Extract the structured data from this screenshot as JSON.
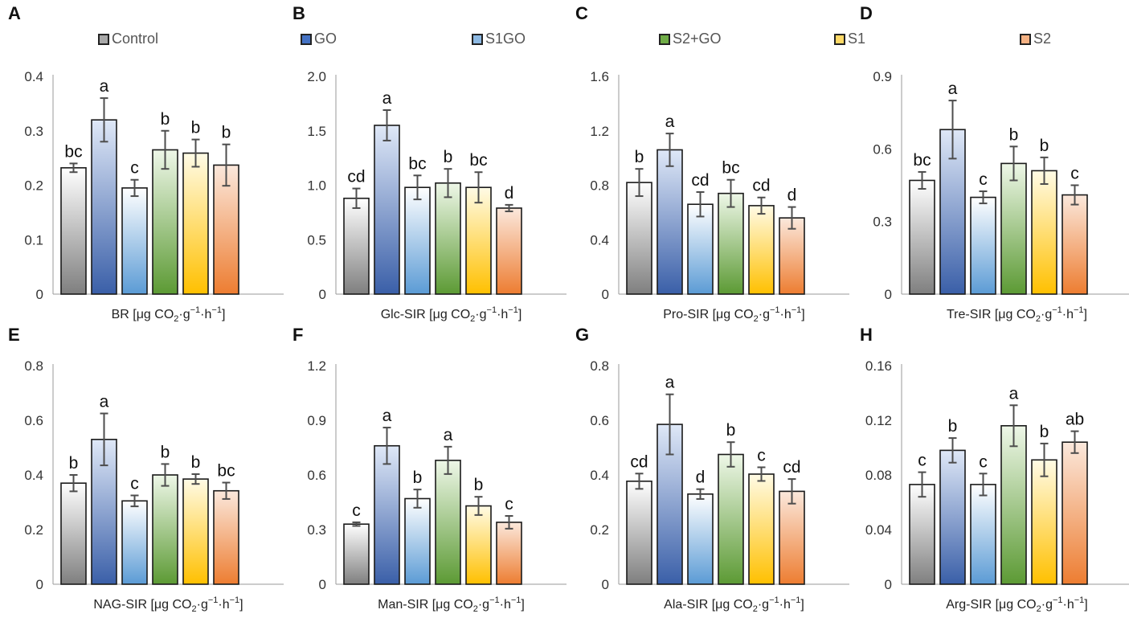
{
  "legend": [
    {
      "label": "Control",
      "color": "#a8a8a8",
      "light": "#ffffff",
      "dark": "#7f7f7f"
    },
    {
      "label": "GO",
      "color": "#4472c4",
      "light": "#dfe8f7",
      "dark": "#3a5fa8"
    },
    {
      "label": "S1GO",
      "color": "#5b9bd5",
      "light": "#ffffff",
      "dark": "#5b9bd5"
    },
    {
      "label": "S2+GO",
      "color": "#70ad47",
      "light": "#eef7e8",
      "dark": "#5c9a34"
    },
    {
      "label": "S1",
      "color": "#ffc000",
      "light": "#fffbe6",
      "dark": "#ffc000"
    },
    {
      "label": "S2",
      "color": "#ed7d31",
      "light": "#fbe8dc",
      "dark": "#ed7d31"
    }
  ],
  "chart_data": [
    {
      "panel": "A",
      "type": "bar",
      "xlabel_main": "BR [μg CO",
      "xlabel_sub": "2",
      "xlabel_rest": "·g",
      "xlabel_sup1": "−1",
      "xlabel_mid": "·h",
      "xlabel_sup2": "−1",
      "xlabel_end": "]",
      "ylim": [
        0,
        0.4
      ],
      "ticks": [
        0,
        0.1,
        0.2,
        0.3,
        0.4
      ],
      "tick_labels": [
        "0",
        "0.1",
        "0.2",
        "0.3",
        "0.4"
      ],
      "values": [
        0.232,
        0.32,
        0.195,
        0.265,
        0.259,
        0.237
      ],
      "errors": [
        0.008,
        0.04,
        0.015,
        0.035,
        0.025,
        0.038
      ],
      "letters": [
        "bc",
        "a",
        "c",
        "b",
        "b",
        "b"
      ]
    },
    {
      "panel": "B",
      "type": "bar",
      "xlabel_main": "Glc-SIR [μg CO",
      "xlabel_sub": "2",
      "xlabel_rest": "·g",
      "xlabel_sup1": "−1",
      "xlabel_mid": "·h",
      "xlabel_sup2": "−1",
      "xlabel_end": "]",
      "ylim": [
        0,
        2.0
      ],
      "ticks": [
        0,
        0.5,
        1.0,
        1.5,
        2.0
      ],
      "tick_labels": [
        "0",
        "0.5",
        "1.0",
        "1.5",
        "2.0"
      ],
      "values": [
        0.88,
        1.55,
        0.98,
        1.02,
        0.98,
        0.79
      ],
      "errors": [
        0.09,
        0.14,
        0.11,
        0.13,
        0.14,
        0.03
      ],
      "letters": [
        "cd",
        "a",
        "bc",
        "b",
        "bc",
        "d"
      ]
    },
    {
      "panel": "C",
      "type": "bar",
      "xlabel_main": "Pro-SIR [μg CO",
      "xlabel_sub": "2",
      "xlabel_rest": "·g",
      "xlabel_sup1": "−1",
      "xlabel_mid": "·h",
      "xlabel_sup2": "−1",
      "xlabel_end": "]",
      "ylim": [
        0,
        1.6
      ],
      "ticks": [
        0,
        0.4,
        0.8,
        1.2,
        1.6
      ],
      "tick_labels": [
        "0",
        "0.4",
        "0.8",
        "1.2",
        "1.6"
      ],
      "values": [
        0.82,
        1.06,
        0.66,
        0.74,
        0.65,
        0.56
      ],
      "errors": [
        0.1,
        0.12,
        0.09,
        0.1,
        0.06,
        0.08
      ],
      "letters": [
        "b",
        "a",
        "cd",
        "bc",
        "cd",
        "d"
      ]
    },
    {
      "panel": "D",
      "type": "bar",
      "xlabel_main": "Tre-SIR [μg CO",
      "xlabel_sub": "2",
      "xlabel_rest": "·g",
      "xlabel_sup1": "−1",
      "xlabel_mid": "·h",
      "xlabel_sup2": "−1",
      "xlabel_end": "]",
      "ylim": [
        0,
        0.9
      ],
      "ticks": [
        0,
        0.3,
        0.6,
        0.9
      ],
      "tick_labels": [
        "0",
        "0.3",
        "0.6",
        "0.9"
      ],
      "values": [
        0.47,
        0.68,
        0.4,
        0.54,
        0.51,
        0.41
      ],
      "errors": [
        0.035,
        0.12,
        0.025,
        0.07,
        0.055,
        0.04
      ],
      "letters": [
        "bc",
        "a",
        "c",
        "b",
        "b",
        "c"
      ]
    },
    {
      "panel": "E",
      "type": "bar",
      "xlabel_main": "NAG-SIR [μg CO",
      "xlabel_sub": "2",
      "xlabel_rest": "·g",
      "xlabel_sup1": "−1",
      "xlabel_mid": "·h",
      "xlabel_sup2": "−1",
      "xlabel_end": "]",
      "ylim": [
        0,
        0.8
      ],
      "ticks": [
        0,
        0.2,
        0.4,
        0.6,
        0.8
      ],
      "tick_labels": [
        "0",
        "0.2",
        "0.4",
        "0.6",
        "0.8"
      ],
      "values": [
        0.37,
        0.53,
        0.305,
        0.4,
        0.385,
        0.342
      ],
      "errors": [
        0.03,
        0.095,
        0.02,
        0.04,
        0.018,
        0.03
      ],
      "letters": [
        "b",
        "a",
        "c",
        "b",
        "b",
        "bc"
      ]
    },
    {
      "panel": "F",
      "type": "bar",
      "xlabel_main": "Man-SIR [μg CO",
      "xlabel_sub": "2",
      "xlabel_rest": "·g",
      "xlabel_sup1": "−1",
      "xlabel_mid": "·h",
      "xlabel_sup2": "−1",
      "xlabel_end": "]",
      "ylim": [
        0,
        1.2
      ],
      "ticks": [
        0,
        0.3,
        0.6,
        0.9,
        1.2
      ],
      "tick_labels": [
        "0",
        "0.3",
        "0.6",
        "0.9",
        "1.2"
      ],
      "values": [
        0.33,
        0.76,
        0.47,
        0.68,
        0.43,
        0.34
      ],
      "errors": [
        0.01,
        0.1,
        0.05,
        0.075,
        0.05,
        0.035
      ],
      "letters": [
        "c",
        "a",
        "b",
        "a",
        "b",
        "c"
      ]
    },
    {
      "panel": "G",
      "type": "bar",
      "xlabel_main": "Ala-SIR [μg CO",
      "xlabel_sub": "2",
      "xlabel_rest": "·g",
      "xlabel_sup1": "−1",
      "xlabel_mid": "·h",
      "xlabel_sup2": "−1",
      "xlabel_end": "]",
      "ylim": [
        0,
        0.8
      ],
      "ticks": [
        0,
        0.2,
        0.4,
        0.6,
        0.8
      ],
      "tick_labels": [
        "0",
        "0.2",
        "0.4",
        "0.6",
        "0.8"
      ],
      "values": [
        0.377,
        0.585,
        0.33,
        0.475,
        0.403,
        0.34
      ],
      "errors": [
        0.028,
        0.11,
        0.018,
        0.045,
        0.025,
        0.045
      ],
      "letters": [
        "cd",
        "a",
        "d",
        "b",
        "c",
        "cd"
      ]
    },
    {
      "panel": "H",
      "type": "bar",
      "xlabel_main": "Arg-SIR [μg CO",
      "xlabel_sub": "2",
      "xlabel_rest": "·g",
      "xlabel_sup1": "−1",
      "xlabel_mid": "·h",
      "xlabel_sup2": "−1",
      "xlabel_end": "]",
      "ylim": [
        0,
        0.16
      ],
      "ticks": [
        0,
        0.04,
        0.08,
        0.12,
        0.16
      ],
      "tick_labels": [
        "0",
        "0.04",
        "0.08",
        "0.12",
        "0.16"
      ],
      "values": [
        0.073,
        0.098,
        0.073,
        0.116,
        0.091,
        0.104
      ],
      "errors": [
        0.009,
        0.009,
        0.008,
        0.015,
        0.012,
        0.008
      ],
      "letters": [
        "c",
        "b",
        "c",
        "a",
        "b",
        "ab"
      ]
    }
  ]
}
